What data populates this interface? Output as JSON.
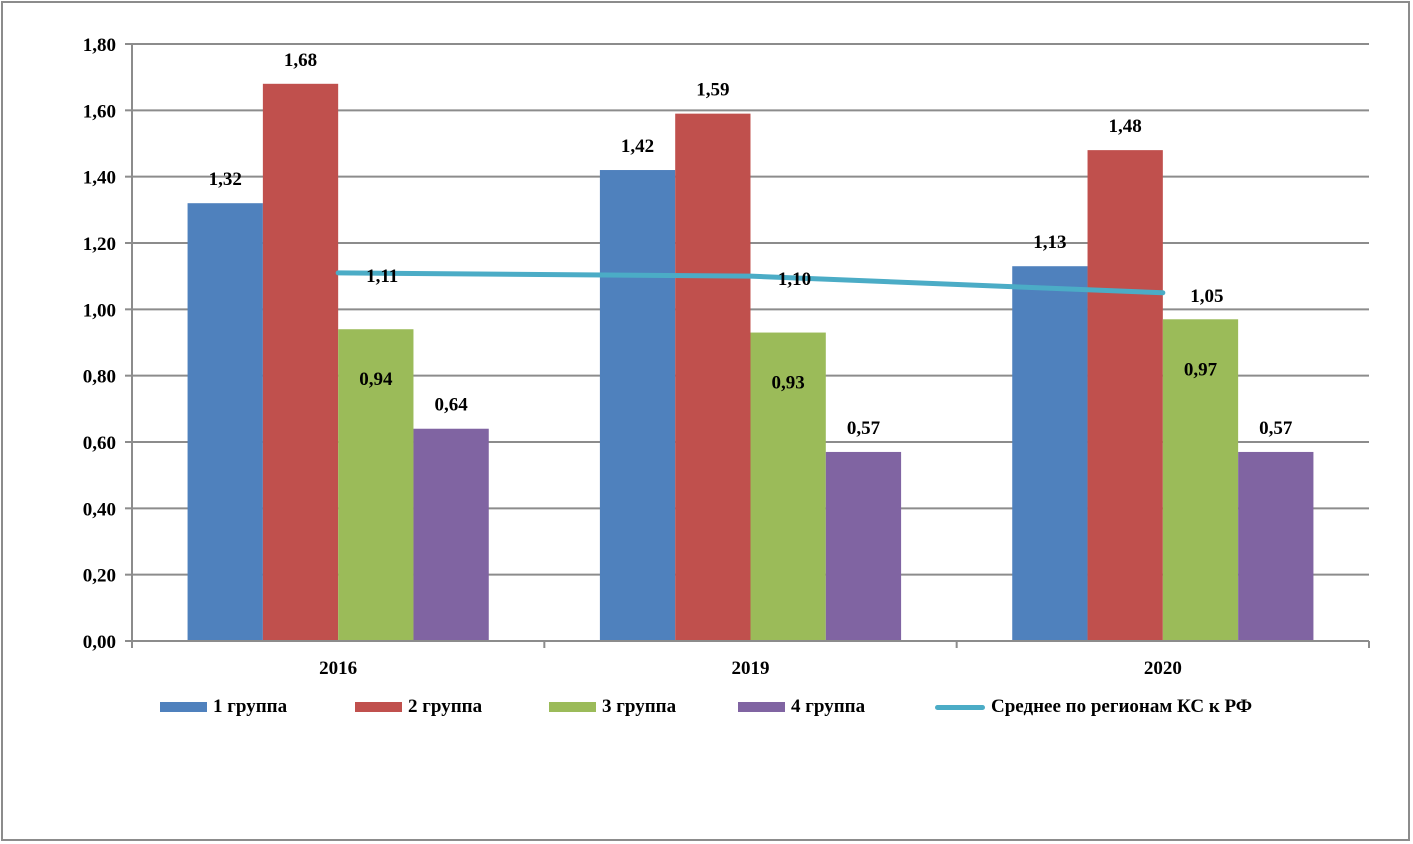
{
  "chart_data": {
    "type": "bar",
    "title": "",
    "xlabel": "",
    "ylabel": "",
    "categories": [
      "2016",
      "2019",
      "2020"
    ],
    "ylim": [
      0,
      1.8
    ],
    "yticks": [
      "0,00",
      "0,20",
      "0,40",
      "0,60",
      "0,80",
      "1,00",
      "1,20",
      "1,40",
      "1,60",
      "1,80"
    ],
    "ytick_values": [
      0,
      0.2,
      0.4,
      0.6,
      0.8,
      1.0,
      1.2,
      1.4,
      1.6,
      1.8
    ],
    "grid": true,
    "legend_position": "bottom",
    "series": [
      {
        "name": "1 группа",
        "type": "bar",
        "color": "#4f81bd",
        "values": [
          1.32,
          1.42,
          1.13
        ],
        "labels": [
          "1,32",
          "1,42",
          "1,13"
        ]
      },
      {
        "name": "2 группа",
        "type": "bar",
        "color": "#c0504d",
        "values": [
          1.68,
          1.59,
          1.48
        ],
        "labels": [
          "1,68",
          "1,59",
          "1,48"
        ]
      },
      {
        "name": "3 группа",
        "type": "bar",
        "color": "#9bbb59",
        "values": [
          0.94,
          0.93,
          0.97
        ],
        "labels": [
          "0,94",
          "0,93",
          "0,97"
        ]
      },
      {
        "name": "4 группа",
        "type": "bar",
        "color": "#8064a2",
        "values": [
          0.64,
          0.57,
          0.57
        ],
        "labels": [
          "0,64",
          "0,57",
          "0,57"
        ]
      },
      {
        "name": "Среднее по регионам КС к РФ",
        "type": "line",
        "color": "#4bacc6",
        "values": [
          1.11,
          1.1,
          1.05
        ],
        "labels": [
          "1,11",
          "1,10",
          "1,05"
        ]
      }
    ]
  }
}
